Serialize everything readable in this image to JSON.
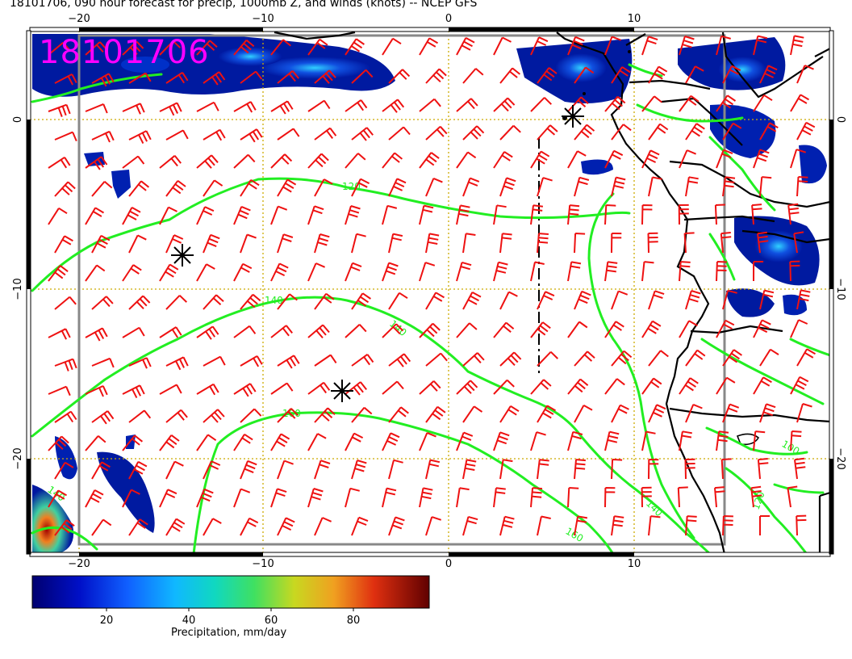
{
  "title": "18101706, 090 hour forecast for precip, 1000mb Z, and winds (knots) -- NCEP GFS",
  "stamp": "18101706",
  "colorbar": {
    "label": "Precipitation, mm/day",
    "ticks": [
      "20",
      "40",
      "60",
      "80"
    ]
  },
  "axes": {
    "lon_labels": [
      "−20",
      "−10",
      "0",
      "10"
    ],
    "lat_labels_left": [
      "0",
      "−10",
      "−20"
    ],
    "lat_labels_right": [
      "0",
      "−10",
      "−20"
    ]
  },
  "contours": [
    {
      "label": "120"
    },
    {
      "label": "140"
    },
    {
      "label": "140"
    },
    {
      "label": "160"
    },
    {
      "label": "160"
    },
    {
      "label": "140"
    },
    {
      "label": "100"
    },
    {
      "label": "120"
    },
    {
      "label": "140"
    }
  ],
  "colors": {
    "contour": "#22ee22",
    "barb": "#ee1111",
    "stamp": "#ff00ff",
    "grid": "#ccaa00",
    "coast": "#000000"
  }
}
